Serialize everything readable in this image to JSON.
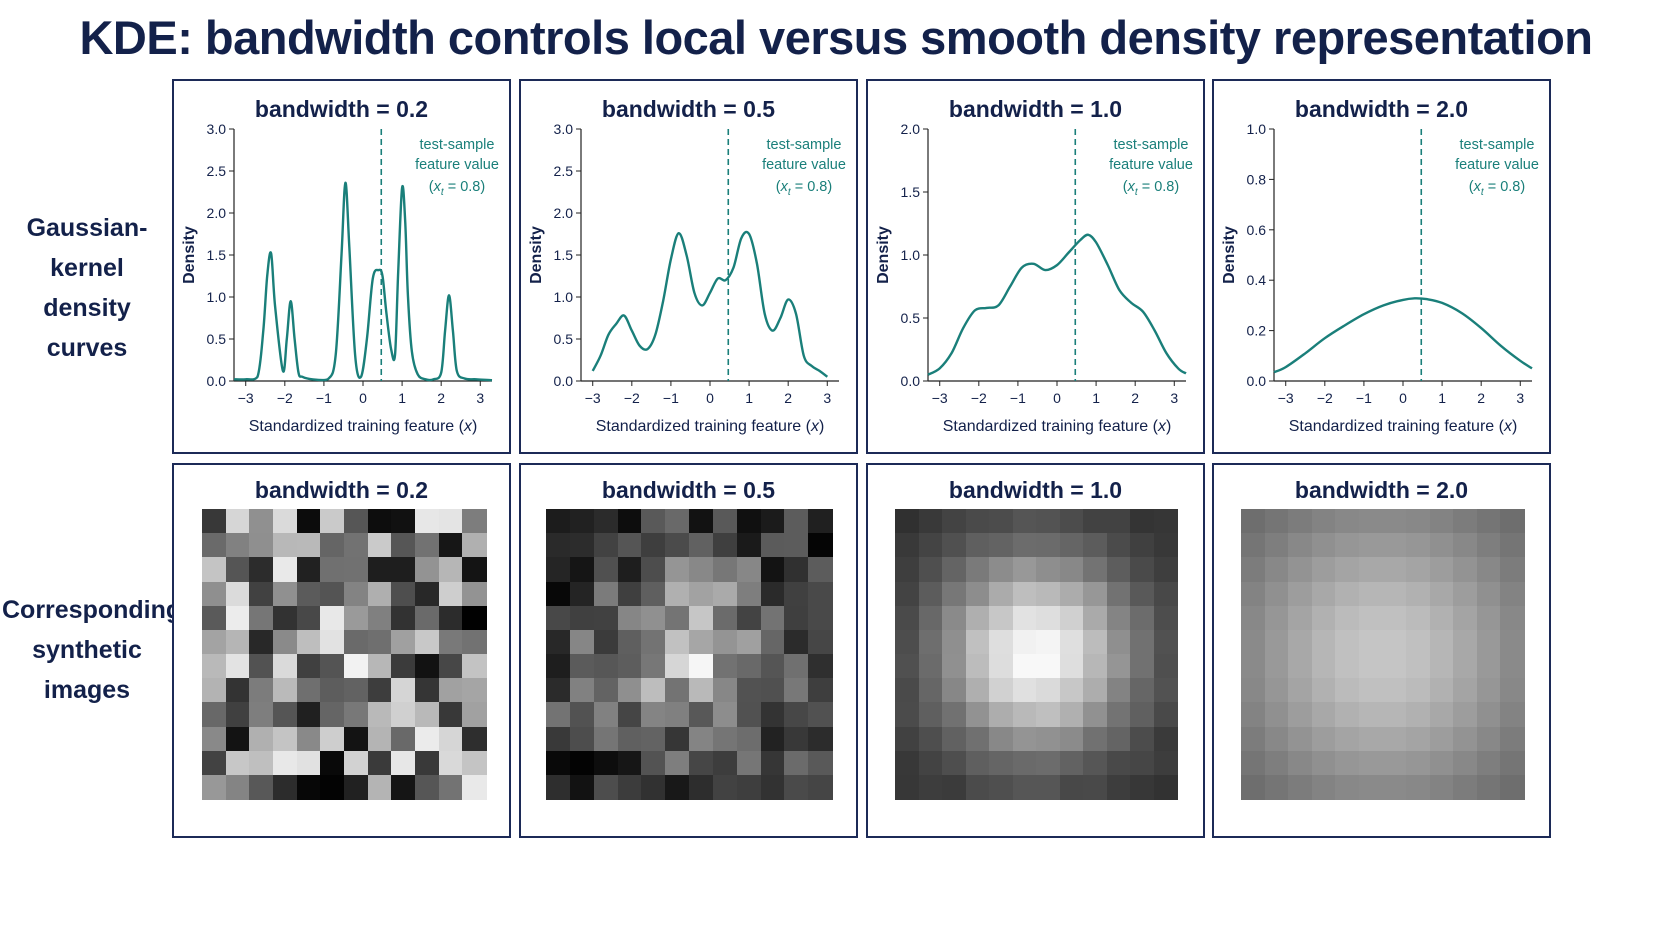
{
  "title": "KDE: bandwidth controls local versus smooth density representation",
  "row_labels": {
    "top": [
      "Gaussian-kernel",
      "density curves"
    ],
    "bottom": [
      "Corresponding",
      "synthetic images"
    ]
  },
  "colors": {
    "curve": "#1a7f7a",
    "navy": "#13214a",
    "frame": "#1c2a57"
  },
  "chart_data": [
    {
      "type": "line",
      "title": "bandwidth = 0.2",
      "xlabel": "Standardized training feature (x)",
      "ylabel": "Density",
      "xlim": [
        -3.3,
        3.3
      ],
      "ylim": [
        0,
        3.0
      ],
      "xticks": [
        -3,
        -2,
        -1,
        0,
        1,
        2,
        3
      ],
      "yticks": [
        0.0,
        0.5,
        1.0,
        1.5,
        2.0,
        2.5,
        3.0
      ],
      "annotation": [
        "test-sample",
        "feature value",
        "(x_t = 0.8)"
      ],
      "test_x": 0.8,
      "x": [
        -3.3,
        -3.0,
        -2.7,
        -2.55,
        -2.45,
        -2.35,
        -2.25,
        -2.05,
        -1.95,
        -1.85,
        -1.75,
        -1.65,
        -1.55,
        -1.3,
        -0.9,
        -0.7,
        -0.55,
        -0.45,
        -0.35,
        -0.2,
        -0.05,
        0.1,
        0.25,
        0.4,
        0.5,
        0.6,
        0.72,
        0.82,
        0.9,
        1.0,
        1.08,
        1.15,
        1.25,
        1.4,
        1.6,
        1.8,
        2.0,
        2.1,
        2.2,
        2.3,
        2.4,
        2.6,
        2.9,
        3.3
      ],
      "y": [
        0.02,
        0.02,
        0.05,
        0.6,
        1.25,
        1.52,
        0.9,
        0.12,
        0.5,
        0.95,
        0.5,
        0.1,
        0.05,
        0.02,
        0.02,
        0.3,
        1.5,
        2.36,
        1.6,
        0.3,
        0.05,
        0.5,
        1.22,
        1.32,
        1.25,
        0.8,
        0.38,
        0.32,
        1.3,
        2.3,
        1.9,
        1.0,
        0.35,
        0.08,
        0.02,
        0.02,
        0.1,
        0.6,
        1.02,
        0.6,
        0.12,
        0.03,
        0.02,
        0.01
      ]
    },
    {
      "type": "line",
      "title": "bandwidth = 0.5",
      "xlabel": "Standardized training feature (x)",
      "ylabel": "Density",
      "xlim": [
        -3.3,
        3.3
      ],
      "ylim": [
        0,
        3.0
      ],
      "xticks": [
        -3,
        -2,
        -1,
        0,
        1,
        2,
        3
      ],
      "yticks": [
        0.0,
        0.5,
        1.0,
        1.5,
        2.0,
        2.5,
        3.0
      ],
      "annotation": [
        "test-sample",
        "feature value",
        "(x_t = 0.8)"
      ],
      "test_x": 0.8,
      "x": [
        -3.0,
        -2.8,
        -2.6,
        -2.4,
        -2.2,
        -2.0,
        -1.8,
        -1.6,
        -1.4,
        -1.2,
        -1.0,
        -0.8,
        -0.6,
        -0.4,
        -0.2,
        0.0,
        0.2,
        0.4,
        0.6,
        0.8,
        1.0,
        1.2,
        1.4,
        1.6,
        1.8,
        2.0,
        2.2,
        2.4,
        2.6,
        2.8,
        3.0
      ],
      "y": [
        0.12,
        0.3,
        0.55,
        0.68,
        0.78,
        0.6,
        0.42,
        0.38,
        0.55,
        0.95,
        1.45,
        1.76,
        1.5,
        1.05,
        0.9,
        1.05,
        1.22,
        1.2,
        1.35,
        1.7,
        1.75,
        1.4,
        0.8,
        0.6,
        0.75,
        0.97,
        0.8,
        0.3,
        0.18,
        0.12,
        0.05
      ]
    },
    {
      "type": "line",
      "title": "bandwidth = 1.0",
      "xlabel": "Standardized training feature (x)",
      "ylabel": "Density",
      "xlim": [
        -3.3,
        3.3
      ],
      "ylim": [
        0,
        2.0
      ],
      "xticks": [
        -3,
        -2,
        -1,
        0,
        1,
        2,
        3
      ],
      "yticks": [
        0.0,
        0.5,
        1.0,
        1.5,
        2.0
      ],
      "annotation": [
        "test-sample",
        "feature value",
        "(x_t = 0.8)"
      ],
      "test_x": 0.8,
      "x": [
        -3.3,
        -3.0,
        -2.7,
        -2.4,
        -2.1,
        -1.8,
        -1.5,
        -1.2,
        -0.9,
        -0.6,
        -0.3,
        0.0,
        0.3,
        0.6,
        0.8,
        1.0,
        1.3,
        1.6,
        1.9,
        2.2,
        2.5,
        2.8,
        3.1,
        3.3
      ],
      "y": [
        0.05,
        0.1,
        0.22,
        0.42,
        0.56,
        0.58,
        0.6,
        0.75,
        0.9,
        0.93,
        0.88,
        0.92,
        1.02,
        1.12,
        1.16,
        1.1,
        0.92,
        0.72,
        0.62,
        0.55,
        0.4,
        0.22,
        0.1,
        0.06
      ]
    },
    {
      "type": "line",
      "title": "bandwidth = 2.0",
      "xlabel": "Standardized training feature (x)",
      "ylabel": "Density",
      "xlim": [
        -3.3,
        3.3
      ],
      "ylim": [
        0,
        1.0
      ],
      "xticks": [
        -3,
        -2,
        -1,
        0,
        1,
        2,
        3
      ],
      "yticks": [
        0.0,
        0.2,
        0.4,
        0.6,
        0.8,
        1.0
      ],
      "annotation": [
        "test-sample",
        "feature value",
        "(x_t = 0.8)"
      ],
      "test_x": 0.8,
      "x": [
        -3.3,
        -3.0,
        -2.5,
        -2.0,
        -1.5,
        -1.0,
        -0.5,
        0.0,
        0.3,
        0.6,
        1.0,
        1.5,
        2.0,
        2.5,
        3.0,
        3.3
      ],
      "y": [
        0.035,
        0.055,
        0.11,
        0.17,
        0.22,
        0.265,
        0.3,
        0.322,
        0.328,
        0.325,
        0.31,
        0.27,
        0.21,
        0.14,
        0.08,
        0.05
      ]
    }
  ],
  "images": [
    {
      "title": "bandwidth = 0.2",
      "grid": [
        12,
        12
      ],
      "seed": 7,
      "mix": 0.08,
      "sigma": 2.2,
      "contrast": 1.0,
      "base": 0.0
    },
    {
      "title": "bandwidth = 0.5",
      "grid": [
        12,
        12
      ],
      "seed": 11,
      "mix": 0.55,
      "sigma": 2.3,
      "contrast": 1.0,
      "base": 0.0
    },
    {
      "title": "bandwidth = 1.0",
      "grid": [
        12,
        12
      ],
      "seed": 3,
      "mix": 0.95,
      "sigma": 3.0,
      "contrast": 0.85,
      "base": 0.15
    },
    {
      "title": "bandwidth = 2.0",
      "grid": [
        12,
        12
      ],
      "seed": 5,
      "mix": 1.0,
      "sigma": 4.5,
      "contrast": 0.45,
      "base": 0.33
    }
  ]
}
